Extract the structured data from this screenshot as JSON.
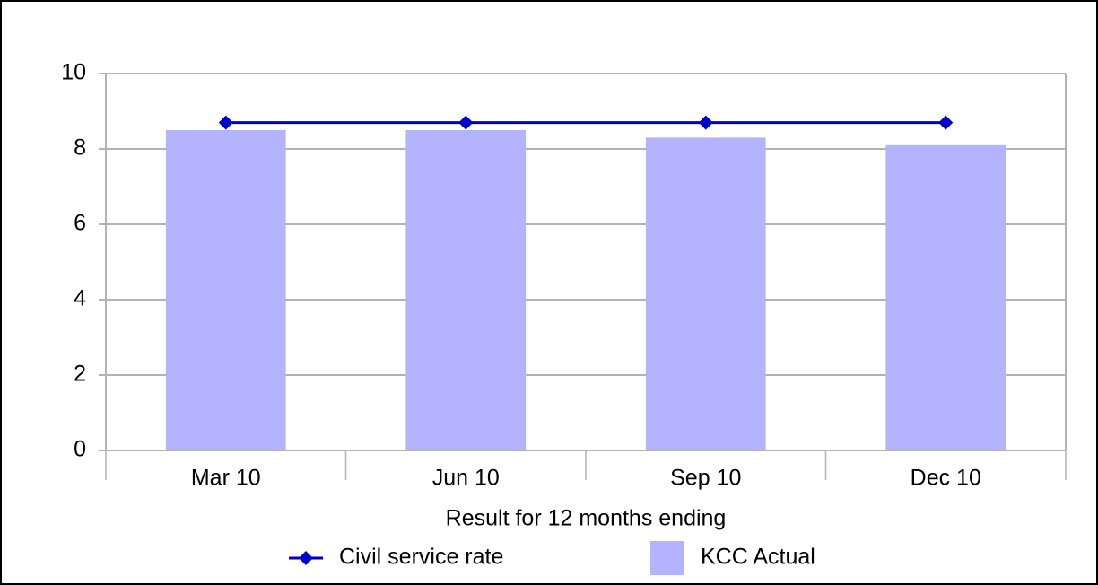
{
  "chart_data": {
    "type": "bar",
    "x_label": "Result for 12 months ending",
    "categories": [
      "Mar 10",
      "Jun 10",
      "Sep 10",
      "Dec 10"
    ],
    "series": [
      {
        "name": "Civil service rate",
        "type": "line",
        "color": "#0000cc",
        "values": [
          8.7,
          8.7,
          8.7,
          8.7
        ]
      },
      {
        "name": "KCC Actual",
        "type": "bar",
        "color": "#b3b3ff",
        "values": [
          8.5,
          8.5,
          8.3,
          8.1
        ]
      }
    ],
    "ylim": [
      0,
      10
    ],
    "yticks": [
      0,
      2,
      4,
      6,
      8,
      10
    ],
    "grid": true,
    "legend": "bottom"
  }
}
